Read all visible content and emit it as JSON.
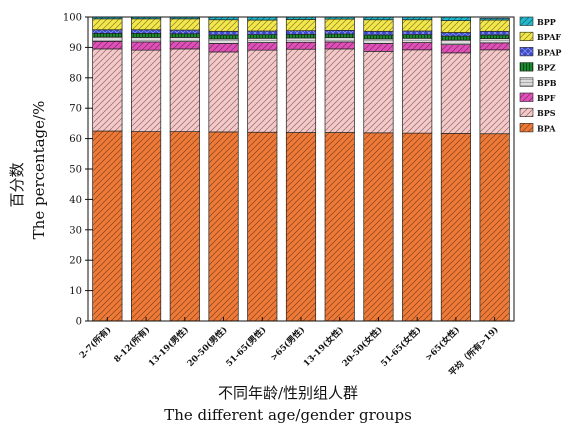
{
  "chart_data": {
    "type": "bar",
    "stacked": true,
    "categories": [
      "2-7(所有)",
      "8-12(所有)",
      "13-19(男性)",
      "20-50(男性)",
      "51-65(男性)",
      ">65(男性)",
      "13-19(女性)",
      "20-50(女性)",
      "51-65(女性)",
      ">65(女性)",
      "平均（所有>19)"
    ],
    "ylabel_cn": "百分数",
    "ylabel_en": "The percentage/%",
    "xlabel_cn": "不同年龄/性别组人群",
    "xlabel_en": "The different age/gender groups",
    "ylim": [
      0,
      100
    ],
    "yticks": [
      0,
      10,
      20,
      30,
      40,
      50,
      60,
      70,
      80,
      90,
      100
    ],
    "legend_position": "top-right",
    "grid": false,
    "series": [
      {
        "name": "BPA",
        "color": "#ef7a38",
        "pattern": "diag",
        "values": [
          62.5,
          62.3,
          62.3,
          62.2,
          62.1,
          62.0,
          62.0,
          61.9,
          61.8,
          61.7,
          61.6
        ]
      },
      {
        "name": "BPS",
        "color": "#f6c8c8",
        "pattern": "diag",
        "values": [
          27.0,
          26.8,
          27.2,
          26.3,
          27.0,
          27.4,
          27.5,
          26.8,
          27.4,
          26.5,
          27.6
        ]
      },
      {
        "name": "BPF",
        "color": "#e050b8",
        "pattern": "diag",
        "values": [
          2.5,
          2.7,
          2.4,
          2.8,
          2.5,
          2.3,
          2.3,
          2.6,
          2.4,
          2.7,
          2.3
        ]
      },
      {
        "name": "BPB",
        "color": "#dcdcdc",
        "pattern": "hlines",
        "values": [
          1.4,
          1.5,
          1.4,
          1.5,
          1.4,
          1.4,
          1.4,
          1.5,
          1.4,
          1.5,
          1.4
        ]
      },
      {
        "name": "BPZ",
        "color": "#1a8a2e",
        "pattern": "vlines",
        "values": [
          1.2,
          1.3,
          1.2,
          1.3,
          1.2,
          1.2,
          1.2,
          1.3,
          1.2,
          1.3,
          1.2
        ]
      },
      {
        "name": "BPAP",
        "color": "#3b4bd0",
        "pattern": "cross",
        "values": [
          1.2,
          1.2,
          1.2,
          1.2,
          1.2,
          1.2,
          1.2,
          1.2,
          1.2,
          1.2,
          1.2
        ]
      },
      {
        "name": "BPAF",
        "color": "#f3e74a",
        "pattern": "diag",
        "values": [
          3.6,
          3.6,
          3.7,
          3.8,
          3.6,
          3.7,
          3.7,
          3.8,
          3.7,
          3.9,
          3.7
        ]
      },
      {
        "name": "BPP",
        "color": "#22b9cc",
        "pattern": "diag",
        "values": [
          0.6,
          0.6,
          0.6,
          0.9,
          1.0,
          0.8,
          0.7,
          0.9,
          0.9,
          1.2,
          0.6
        ]
      }
    ],
    "legend_labels": [
      "BPP",
      "BPAF",
      "BPAP",
      "BPZ",
      "BPB",
      "BPF",
      "BPS",
      "BPA"
    ]
  }
}
